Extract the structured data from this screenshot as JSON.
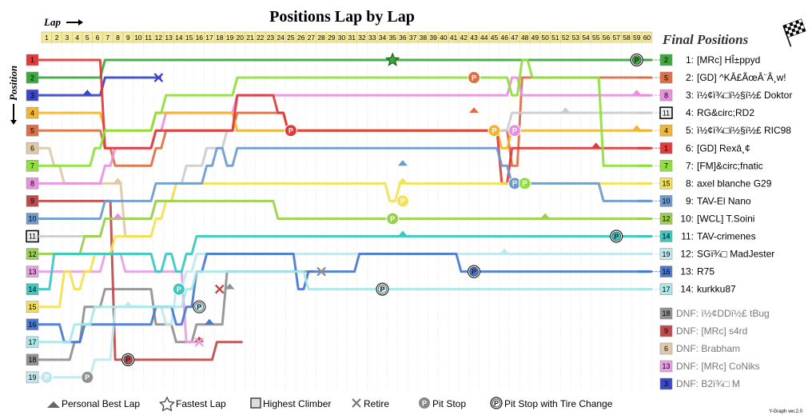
{
  "chart_data": {
    "type": "line",
    "title": "Positions Lap by Lap",
    "xlabel": "Lap",
    "ylabel": "Position",
    "laps": [
      1,
      2,
      3,
      4,
      5,
      6,
      7,
      8,
      9,
      10,
      11,
      12,
      13,
      14,
      15,
      16,
      17,
      18,
      19,
      20,
      21,
      22,
      23,
      24,
      25,
      26,
      27,
      28,
      29,
      30,
      31,
      32,
      33,
      34,
      35,
      36,
      37,
      38,
      39,
      40,
      41,
      42,
      43,
      44,
      45,
      46,
      47,
      48,
      49,
      50,
      51,
      52,
      53,
      54,
      55,
      56,
      57,
      58,
      59,
      60
    ],
    "positions": [
      1,
      2,
      3,
      4,
      5,
      6,
      7,
      8,
      9,
      10,
      11,
      12,
      13,
      14,
      15,
      16,
      17,
      18,
      19
    ],
    "position_badges": [
      {
        "pos": 1,
        "grid": "1",
        "color": "#e03a3a"
      },
      {
        "pos": 2,
        "grid": "2",
        "color": "#3da83d"
      },
      {
        "pos": 3,
        "grid": "3",
        "color": "#3a46c8"
      },
      {
        "pos": 4,
        "grid": "4",
        "color": "#f2b531"
      },
      {
        "pos": 5,
        "grid": "5",
        "color": "#dd6f45"
      },
      {
        "pos": 6,
        "grid": "6",
        "color": "#e0c8a8"
      },
      {
        "pos": 7,
        "grid": "7",
        "color": "#8fe03a"
      },
      {
        "pos": 8,
        "grid": "8",
        "color": "#e890e0"
      },
      {
        "pos": 9,
        "grid": "9",
        "color": "#c04a4a"
      },
      {
        "pos": 10,
        "grid": "10",
        "color": "#6a9ad0"
      },
      {
        "pos": 11,
        "grid": "11",
        "color": "#eeeeee"
      },
      {
        "pos": 12,
        "grid": "12",
        "color": "#9ad04a"
      },
      {
        "pos": 13,
        "grid": "13",
        "color": "#e6a0e6"
      },
      {
        "pos": 14,
        "grid": "14",
        "color": "#3ac8c0"
      },
      {
        "pos": 15,
        "grid": "15",
        "color": "#f5e050"
      },
      {
        "pos": 16,
        "grid": "16",
        "color": "#4a78d0"
      },
      {
        "pos": 17,
        "grid": "17",
        "color": "#a8e8e8"
      },
      {
        "pos": 18,
        "grid": "18",
        "color": "#909090"
      },
      {
        "pos": 19,
        "grid": "19",
        "color": "#bfe8ee"
      }
    ],
    "series": [
      {
        "start": 2,
        "color": "#3da83d",
        "finish": 1,
        "changes": [
          [
            1,
            2
          ],
          [
            7,
            1
          ]
        ]
      },
      {
        "start": 5,
        "color": "#dd6f45",
        "finish": 2,
        "changes": [
          [
            1,
            5
          ],
          [
            7,
            6
          ],
          [
            8,
            7
          ],
          [
            12,
            6
          ],
          [
            13,
            5
          ],
          [
            20,
            4
          ],
          [
            25,
            5
          ],
          [
            47,
            7
          ],
          [
            48,
            2
          ]
        ]
      },
      {
        "start": 8,
        "color": "#e890e0",
        "finish": 3,
        "changes": [
          [
            1,
            8
          ],
          [
            6,
            8
          ],
          [
            7,
            7
          ],
          [
            8,
            6
          ],
          [
            12,
            5
          ],
          [
            13,
            4
          ],
          [
            20,
            3
          ],
          [
            47,
            2
          ],
          [
            48,
            3
          ]
        ]
      },
      {
        "start": 11,
        "color": "#cccccc",
        "finish": 4,
        "changes": [
          [
            1,
            11
          ],
          [
            7,
            10
          ],
          [
            11,
            10
          ],
          [
            12,
            9
          ],
          [
            14,
            8
          ],
          [
            15,
            7
          ],
          [
            17,
            6
          ],
          [
            19,
            5
          ],
          [
            36,
            5
          ],
          [
            47,
            4
          ]
        ]
      },
      {
        "start": 4,
        "color": "#f2b531",
        "finish": 5,
        "changes": [
          [
            1,
            4
          ],
          [
            7,
            5
          ],
          [
            12,
            4
          ],
          [
            20,
            5
          ],
          [
            46,
            6
          ],
          [
            47,
            5
          ]
        ]
      },
      {
        "start": 1,
        "color": "#e03a3a",
        "finish": 6,
        "changes": [
          [
            1,
            1
          ],
          [
            7,
            6
          ],
          [
            12,
            5
          ],
          [
            20,
            3
          ],
          [
            24,
            4
          ],
          [
            25,
            5
          ],
          [
            46,
            8
          ],
          [
            47,
            6
          ]
        ]
      },
      {
        "start": 7,
        "color": "#8fe03a",
        "finish": 7,
        "changes": [
          [
            1,
            7
          ],
          [
            6,
            6
          ],
          [
            7,
            5
          ],
          [
            12,
            4
          ],
          [
            13,
            3
          ],
          [
            20,
            2
          ],
          [
            47,
            3
          ],
          [
            48,
            1
          ],
          [
            49,
            2
          ],
          [
            56,
            7
          ]
        ]
      },
      {
        "start": 15,
        "color": "#f5e050",
        "finish": 8,
        "changes": [
          [
            1,
            15
          ],
          [
            3,
            13
          ],
          [
            4,
            14
          ],
          [
            5,
            13
          ],
          [
            6,
            12
          ],
          [
            8,
            11
          ],
          [
            12,
            10
          ],
          [
            13,
            9
          ],
          [
            14,
            8
          ],
          [
            35,
            9
          ],
          [
            36,
            8
          ]
        ]
      },
      {
        "start": 10,
        "color": "#6a9ad0",
        "finish": 9,
        "changes": [
          [
            1,
            10
          ],
          [
            7,
            9
          ],
          [
            12,
            8
          ],
          [
            17,
            7
          ],
          [
            18,
            6
          ],
          [
            19,
            7
          ],
          [
            20,
            6
          ],
          [
            46,
            7
          ],
          [
            47,
            8
          ],
          [
            56,
            9
          ]
        ]
      },
      {
        "start": 12,
        "color": "#9ad04a",
        "finish": 10,
        "changes": [
          [
            1,
            12
          ],
          [
            5,
            11
          ],
          [
            7,
            10
          ],
          [
            12,
            9
          ],
          [
            24,
            10
          ],
          [
            35,
            10
          ],
          [
            36,
            10
          ]
        ]
      },
      {
        "start": 14,
        "color": "#3ac8c0",
        "finish": 11,
        "changes": [
          [
            1,
            14
          ],
          [
            2,
            12
          ],
          [
            12,
            13
          ],
          [
            13,
            12
          ],
          [
            14,
            13
          ],
          [
            15,
            12
          ],
          [
            16,
            11
          ],
          [
            56,
            11
          ]
        ]
      },
      {
        "start": 19,
        "color": "#bfe8ee",
        "finish": 12,
        "changes": [
          [
            1,
            19
          ],
          [
            6,
            18
          ],
          [
            8,
            15
          ],
          [
            13,
            16
          ],
          [
            14,
            14
          ],
          [
            15,
            13
          ],
          [
            16,
            12
          ],
          [
            34,
            12
          ],
          [
            58,
            12
          ]
        ]
      },
      {
        "start": 16,
        "color": "#4a78d0",
        "finish": 13,
        "changes": [
          [
            1,
            16
          ],
          [
            3,
            17
          ],
          [
            5,
            16
          ],
          [
            8,
            16
          ],
          [
            12,
            15
          ],
          [
            14,
            16
          ],
          [
            15,
            15
          ],
          [
            16,
            13
          ],
          [
            17,
            12
          ],
          [
            26,
            14
          ],
          [
            27,
            13
          ],
          [
            32,
            12
          ],
          [
            42,
            13
          ]
        ]
      },
      {
        "start": 17,
        "color": "#a8e8e8",
        "finish": 14,
        "changes": [
          [
            1,
            17
          ],
          [
            4,
            16
          ],
          [
            6,
            15
          ],
          [
            13,
            15
          ],
          [
            15,
            14
          ],
          [
            16,
            13
          ],
          [
            26,
            13
          ],
          [
            27,
            14
          ]
        ]
      }
    ],
    "retired": [
      {
        "name": "DNF: ï½¢DDï½£ tBug",
        "start": 18,
        "color": "#909090",
        "changes": [
          [
            1,
            18
          ],
          [
            4,
            17
          ],
          [
            5,
            15
          ],
          [
            7,
            14
          ],
          [
            12,
            16
          ],
          [
            14,
            17
          ],
          [
            16,
            16
          ],
          [
            19,
            13
          ],
          [
            27,
            13
          ]
        ],
        "end_lap": 27
      },
      {
        "name": "DNF: [MRc] s4rd",
        "start": 9,
        "color": "#c04a4a",
        "changes": [
          [
            1,
            9
          ],
          [
            8,
            18
          ],
          [
            18,
            17
          ],
          [
            20,
            17
          ]
        ],
        "end_lap": 20
      },
      {
        "name": "DNF: Brabham",
        "start": 6,
        "color": "#e0c8a8",
        "changes": [
          [
            1,
            6
          ],
          [
            2,
            7
          ],
          [
            3,
            8
          ],
          [
            7,
            8
          ],
          [
            9,
            11
          ]
        ],
        "end_lap": 11
      },
      {
        "name": "DNF: [MRc] CoNiks",
        "start": 13,
        "color": "#e6a0e6",
        "changes": [
          [
            1,
            13
          ],
          [
            7,
            12
          ],
          [
            9,
            13
          ],
          [
            15,
            17
          ]
        ],
        "end_lap": 16
      },
      {
        "name": "DNF: B2ï¾□ M",
        "start": 3,
        "color": "#3a46c8",
        "changes": [
          [
            1,
            3
          ],
          [
            7,
            2
          ]
        ],
        "end_lap": 12
      }
    ],
    "pit_stops": [
      {
        "lap": 59,
        "pos": 1,
        "color": "#3da83d",
        "tire": true
      },
      {
        "lap": 43,
        "pos": 2,
        "color": "#dd6f45",
        "tire": false
      },
      {
        "lap": 25,
        "pos": 5,
        "color": "#e03a3a",
        "tire": false
      },
      {
        "lap": 45,
        "pos": 5,
        "color": "#f2b531",
        "tire": false
      },
      {
        "lap": 47,
        "pos": 5,
        "color": "#e890e0",
        "tire": false
      },
      {
        "lap": 47,
        "pos": 8,
        "color": "#6a9ad0",
        "tire": false
      },
      {
        "lap": 48,
        "pos": 8,
        "color": "#8fe03a",
        "tire": false
      },
      {
        "lap": 36,
        "pos": 9,
        "color": "#f5e050",
        "tire": false
      },
      {
        "lap": 35,
        "pos": 10,
        "color": "#9ad04a",
        "tire": false
      },
      {
        "lap": 57,
        "pos": 11,
        "color": "#3ac8c0",
        "tire": true
      },
      {
        "lap": 43,
        "pos": 13,
        "color": "#4a78d0",
        "tire": true
      },
      {
        "lap": 34,
        "pos": 14,
        "color": "#bfe8ee",
        "tire": true
      },
      {
        "lap": 14,
        "pos": 14,
        "color": "#3ac8c0",
        "tire": false
      },
      {
        "lap": 16,
        "pos": 15,
        "color": "#bfe8ee",
        "tire": true
      },
      {
        "lap": 9,
        "pos": 18,
        "color": "#c04a4a",
        "tire": true
      },
      {
        "lap": 1,
        "pos": 19,
        "color": "#bfe8ee",
        "tire": false
      },
      {
        "lap": 5,
        "pos": 19,
        "color": "#909090",
        "tire": false
      }
    ],
    "fastest_lap": {
      "lap": 35,
      "pos": 1
    },
    "personal_best_marks": [
      {
        "lap": 5,
        "pos": 3,
        "color": "#3a46c8"
      },
      {
        "lap": 52,
        "pos": 4,
        "color": "#cccccc"
      },
      {
        "lap": 43,
        "pos": 4,
        "color": "#dd6f45"
      },
      {
        "lap": 59,
        "pos": 3,
        "color": "#e890e0"
      },
      {
        "lap": 59,
        "pos": 5,
        "color": "#f2b531"
      },
      {
        "lap": 55,
        "pos": 6,
        "color": "#e03a3a"
      },
      {
        "lap": 36,
        "pos": 7,
        "color": "#6a9ad0"
      },
      {
        "lap": 36,
        "pos": 8,
        "color": "#f5e050"
      },
      {
        "lap": 8,
        "pos": 8,
        "color": "#e0c8a8"
      },
      {
        "lap": 50,
        "pos": 10,
        "color": "#9ad04a"
      },
      {
        "lap": 36,
        "pos": 11,
        "color": "#3ac8c0"
      },
      {
        "lap": 8,
        "pos": 10,
        "color": "#e890e0"
      },
      {
        "lap": 46,
        "pos": 12,
        "color": "#bfe8ee"
      },
      {
        "lap": 19,
        "pos": 14,
        "color": "#909090"
      },
      {
        "lap": 17,
        "pos": 16,
        "color": "#4a78d0"
      },
      {
        "lap": 16,
        "pos": 17,
        "color": "#c04a4a"
      },
      {
        "lap": 9,
        "pos": 15,
        "color": "#bfe8ee"
      }
    ],
    "retire_marks": [
      {
        "lap": 12,
        "pos": 2,
        "color": "#3a46c8"
      },
      {
        "lap": 28,
        "pos": 13,
        "color": "#909090"
      },
      {
        "lap": 18,
        "pos": 14,
        "color": "#c04a4a"
      },
      {
        "lap": 16,
        "pos": 17,
        "color": "#e6a0e6"
      }
    ],
    "highest_climber_grid": 11,
    "highest_climber_pos": 4,
    "grid_lines": true
  },
  "final_positions_title": "Final Positions",
  "results": [
    {
      "pos": "1:",
      "name": "[MRc] HÎ±ppyd",
      "grid": "2",
      "color": "#3da83d"
    },
    {
      "pos": "2:",
      "name": "[GD] ^KÂ£ÃœÂ¨Â¸w!",
      "grid": "5",
      "color": "#dd6f45"
    },
    {
      "pos": "3:",
      "name": "ï½¢ï¾□ï½§ï½£ Doktor",
      "grid": "8",
      "color": "#e890e0"
    },
    {
      "pos": "4:",
      "name": "RG&circ;RD2",
      "grid": "11",
      "color": "#eeeeee"
    },
    {
      "pos": "5:",
      "name": "ï½¢ï¾□ï½§ï½£ RIC98",
      "grid": "4",
      "color": "#f2b531"
    },
    {
      "pos": "6:",
      "name": "[GD] Rexâ¸¢",
      "grid": "1",
      "color": "#e03a3a"
    },
    {
      "pos": "7:",
      "name": "[FM]&circ;fnatic",
      "grid": "7",
      "color": "#8fe03a"
    },
    {
      "pos": "8:",
      "name": "axel blanche G29",
      "grid": "15",
      "color": "#f5e050"
    },
    {
      "pos": "9:",
      "name": "TAV-El Nano",
      "grid": "10",
      "color": "#6a9ad0"
    },
    {
      "pos": "10:",
      "name": "[WCL] T.Soini",
      "grid": "12",
      "color": "#9ad04a"
    },
    {
      "pos": "11:",
      "name": "TAV-crimenes",
      "grid": "14",
      "color": "#3ac8c0"
    },
    {
      "pos": "12:",
      "name": "SGï¾□ MadJester",
      "grid": "19",
      "color": "#bfe8ee"
    },
    {
      "pos": "13:",
      "name": "R75",
      "grid": "16",
      "color": "#4a78d0"
    },
    {
      "pos": "14:",
      "name": "kurkku87",
      "grid": "17",
      "color": "#a8e8e8"
    }
  ],
  "dnf": [
    {
      "name": "DNF: ï½¢DDï½£ tBug",
      "grid": "18",
      "color": "#909090"
    },
    {
      "name": "DNF: [MRc] s4rd",
      "grid": "9",
      "color": "#c04a4a"
    },
    {
      "name": "DNF: Brabham",
      "grid": "6",
      "color": "#e0c8a8"
    },
    {
      "name": "DNF: [MRc] CoNiks",
      "grid": "13",
      "color": "#e6a0e6"
    },
    {
      "name": "DNF: B2ï¾□ M",
      "grid": "3",
      "color": "#3a46c8"
    }
  ],
  "legend": {
    "personal_best": "Personal Best Lap",
    "fastest": "Fastest Lap",
    "climber": "Highest Climber",
    "retire": "Retire",
    "pit": "Pit Stop",
    "pit_tire": "Pit Stop with Tire Change",
    "pit_glyph": "P"
  },
  "credit": "Y-Graph ver.2.0"
}
